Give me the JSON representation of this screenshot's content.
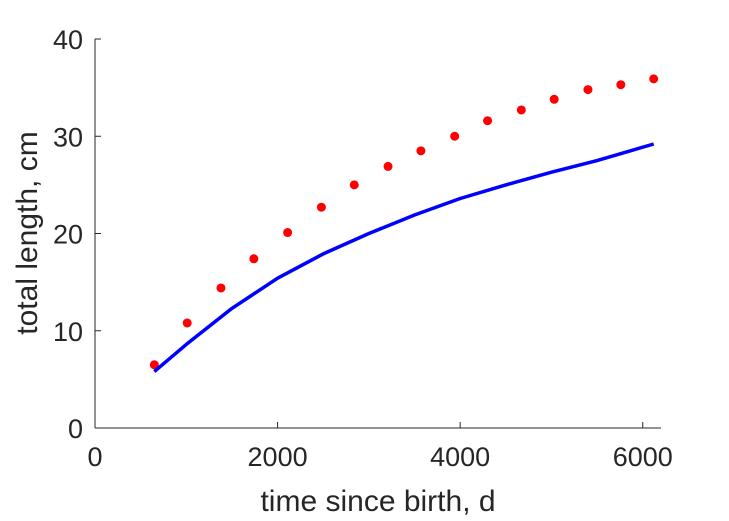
{
  "chart_data": {
    "type": "scatter",
    "title": "",
    "xlabel": "time since birth, d",
    "ylabel": "total length, cm",
    "xlim": [
      0,
      6200
    ],
    "ylim": [
      0,
      40
    ],
    "xticks": [
      0,
      2000,
      4000,
      6000
    ],
    "yticks": [
      0,
      10,
      20,
      30,
      40
    ],
    "xtick_labels": [
      "0",
      "2000",
      "4000",
      "6000"
    ],
    "ytick_labels": [
      "0",
      "10",
      "20",
      "30",
      "40"
    ],
    "grid": false,
    "legend": "none",
    "series": [
      {
        "kind": "points",
        "color": "#ff0000",
        "x": [
          650,
          1010,
          1380,
          1740,
          2110,
          2480,
          2840,
          3210,
          3570,
          3940,
          4300,
          4670,
          5030,
          5400,
          5760,
          6120
        ],
        "y": [
          6.5,
          10.8,
          14.4,
          17.4,
          20.1,
          22.7,
          25.0,
          26.9,
          28.5,
          30.0,
          31.6,
          32.7,
          33.8,
          34.8,
          35.3,
          35.9
        ]
      },
      {
        "kind": "line",
        "color": "#0000ff",
        "x": [
          650,
          1000,
          1500,
          2000,
          2500,
          3000,
          3500,
          4000,
          4500,
          5000,
          5500,
          6120
        ],
        "y": [
          5.8,
          8.6,
          12.3,
          15.4,
          17.9,
          20.0,
          21.9,
          23.6,
          25.0,
          26.3,
          27.5,
          29.2
        ]
      }
    ]
  }
}
